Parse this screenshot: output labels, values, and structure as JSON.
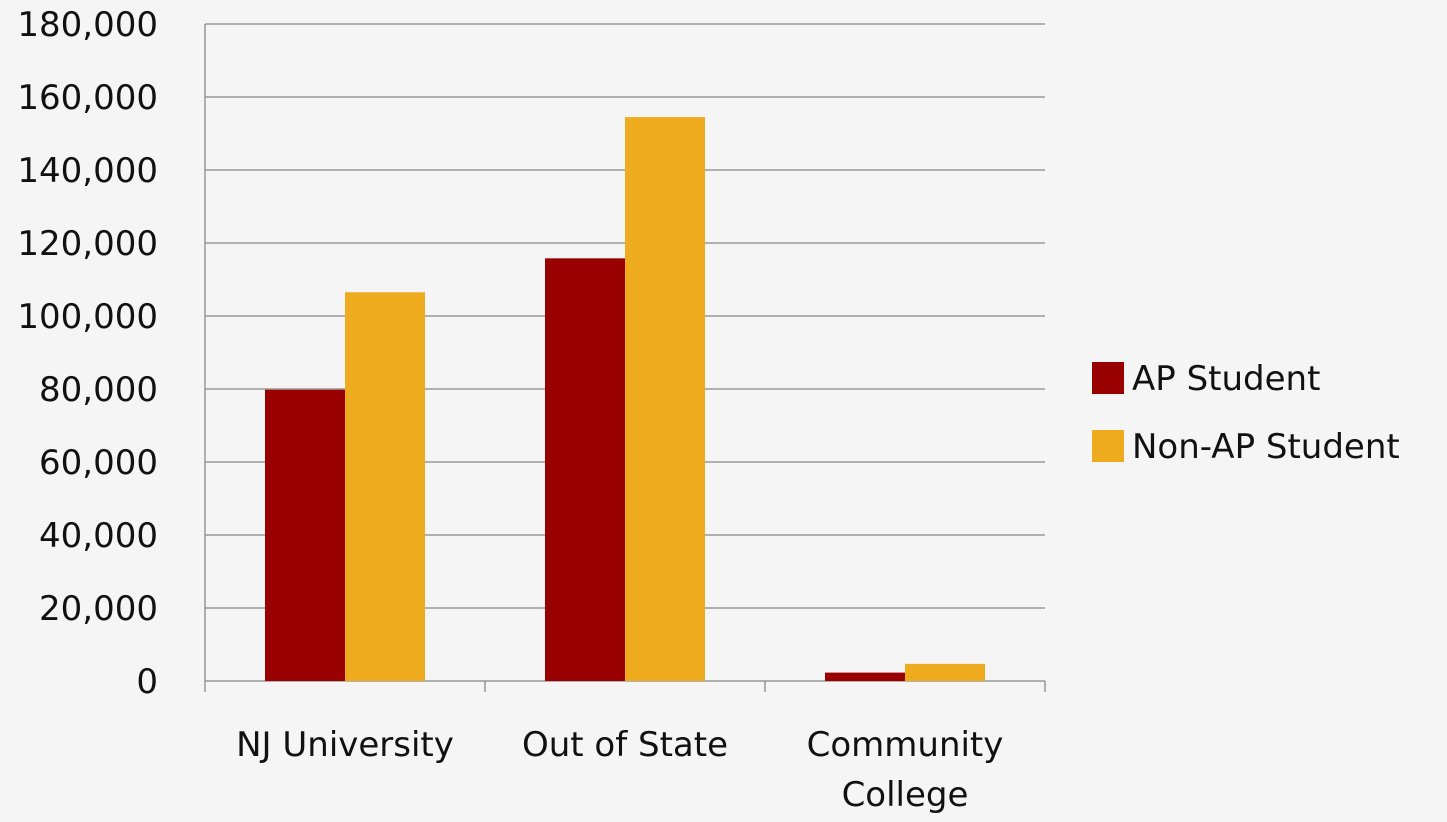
{
  "colors": {
    "background": "#f5f5f5",
    "ap": "#990000",
    "non_ap": "#efab1e",
    "grid": "#888888",
    "text": "#111111"
  },
  "chart_data": {
    "type": "bar",
    "categories": [
      [
        "NJ University"
      ],
      [
        "Out of State"
      ],
      [
        "Community",
        "College"
      ]
    ],
    "series": [
      {
        "name": "AP Student",
        "color": "#990000",
        "values": [
          79800,
          115800,
          2300
        ]
      },
      {
        "name": "Non-AP Student",
        "color": "#efab1e",
        "values": [
          106500,
          154500,
          4700
        ]
      }
    ],
    "ylim": [
      0,
      180000
    ],
    "yticks": [
      0,
      20000,
      40000,
      60000,
      80000,
      100000,
      120000,
      140000,
      160000,
      180000
    ],
    "ytick_labels": [
      "0",
      "20,000",
      "40,000",
      "60,000",
      "80,000",
      "100,000",
      "120,000",
      "140,000",
      "160,000",
      "180,000"
    ],
    "grid": true,
    "legend_position": "right",
    "title": "",
    "xlabel": "",
    "ylabel": ""
  }
}
